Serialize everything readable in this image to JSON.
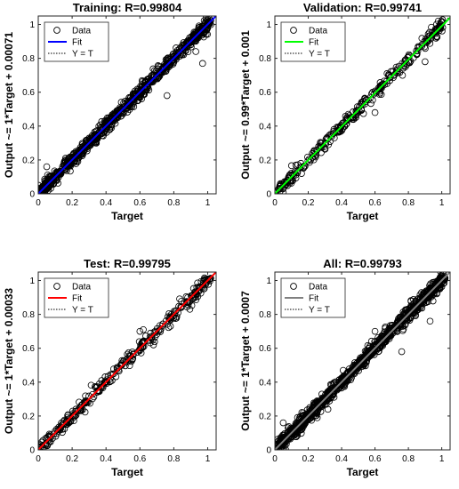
{
  "chart_data": [
    {
      "type": "scatter",
      "title": "Training: R=0.99804",
      "xlabel": "Target",
      "ylabel": "Output ~= 1*Target + 0.00071",
      "xlim": [
        0,
        1.05
      ],
      "ylim": [
        0,
        1.05
      ],
      "xticks": [
        "0",
        "0.2",
        "0.4",
        "0.6",
        "0.8",
        "1"
      ],
      "yticks": [
        "0",
        "0.2",
        "0.4",
        "0.6",
        "0.8",
        "1"
      ],
      "fit": {
        "slope": 1,
        "intercept": 0.00071,
        "color": "#0000ff"
      },
      "spread": 0.02,
      "n_points": 900,
      "outliers": [
        [
          0.76,
          0.58
        ],
        [
          0.97,
          0.77
        ],
        [
          0.05,
          0.16
        ],
        [
          0.93,
          0.84
        ]
      ],
      "legend": {
        "position": "top-left",
        "entries": [
          "Data",
          "Fit",
          "Y = T"
        ]
      }
    },
    {
      "type": "scatter",
      "title": "Validation: R=0.99741",
      "xlabel": "Target",
      "ylabel": "Output ~= 0.99*Target + 0.001",
      "xlim": [
        0,
        1.05
      ],
      "ylim": [
        0,
        1.05
      ],
      "xticks": [
        "0",
        "0.2",
        "0.4",
        "0.6",
        "0.8",
        "1"
      ],
      "yticks": [
        "0",
        "0.2",
        "0.4",
        "0.6",
        "0.8",
        "1"
      ],
      "fit": {
        "slope": 0.99,
        "intercept": 0.001,
        "color": "#00ff00"
      },
      "spread": 0.02,
      "n_points": 320,
      "outliers": [
        [
          0.16,
          0.12
        ],
        [
          0.9,
          0.78
        ],
        [
          0.6,
          0.48
        ]
      ],
      "legend": {
        "position": "top-left",
        "entries": [
          "Data",
          "Fit",
          "Y = T"
        ]
      }
    },
    {
      "type": "scatter",
      "title": "Test: R=0.99795",
      "xlabel": "Target",
      "ylabel": "Output ~= 1*Target + 0.00033",
      "xlim": [
        0,
        1.05
      ],
      "ylim": [
        0,
        1.05
      ],
      "xticks": [
        "0",
        "0.2",
        "0.4",
        "0.6",
        "0.8",
        "1"
      ],
      "yticks": [
        "0",
        "0.2",
        "0.4",
        "0.6",
        "0.8",
        "1"
      ],
      "fit": {
        "slope": 1,
        "intercept": 0.00033,
        "color": "#ff0000"
      },
      "spread": 0.02,
      "n_points": 320,
      "outliers": [
        [
          0.6,
          0.7
        ],
        [
          0.78,
          0.73
        ],
        [
          0.68,
          0.62
        ],
        [
          0.62,
          0.71
        ]
      ],
      "legend": {
        "position": "top-left",
        "entries": [
          "Data",
          "Fit",
          "Y = T"
        ]
      }
    },
    {
      "type": "scatter",
      "title": "All: R=0.99793",
      "xlabel": "Target",
      "ylabel": "Output ~= 1*Target + 0.0007",
      "xlim": [
        0,
        1.05
      ],
      "ylim": [
        0,
        1.05
      ],
      "xticks": [
        "0",
        "0.2",
        "0.4",
        "0.6",
        "0.8",
        "1"
      ],
      "yticks": [
        "0",
        "0.2",
        "0.4",
        "0.6",
        "0.8",
        "1"
      ],
      "fit": {
        "slope": 1,
        "intercept": 0.0007,
        "color": "#808080"
      },
      "spread": 0.022,
      "n_points": 1100,
      "outliers": [
        [
          0.76,
          0.58
        ],
        [
          0.16,
          0.12
        ],
        [
          0.6,
          0.7
        ],
        [
          0.93,
          0.76
        ],
        [
          0.05,
          0.16
        ]
      ],
      "legend": {
        "position": "top-left",
        "entries": [
          "Data",
          "Fit",
          "Y = T"
        ]
      }
    }
  ]
}
